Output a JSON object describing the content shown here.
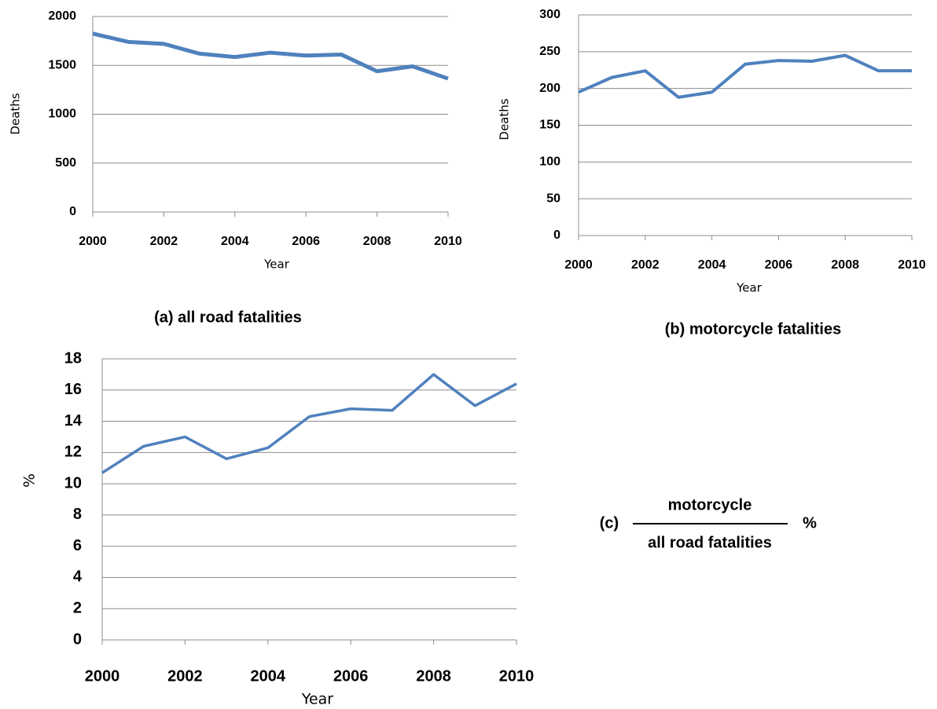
{
  "chart_data": [
    {
      "type": "line",
      "caption": "(a) all road fatalities",
      "x_label": "Year",
      "y_label": "Deaths",
      "x": [
        2000,
        2001,
        2002,
        2003,
        2004,
        2005,
        2006,
        2007,
        2008,
        2009,
        2010
      ],
      "values": [
        1825,
        1740,
        1720,
        1620,
        1585,
        1630,
        1600,
        1610,
        1440,
        1490,
        1365
      ],
      "color": "#4f81bd",
      "xlim": [
        2000,
        2010
      ],
      "xticks": [
        2000,
        2002,
        2004,
        2006,
        2008,
        2010
      ],
      "ylim": [
        0,
        2000
      ],
      "yticks": [
        0,
        500,
        1000,
        1500,
        2000
      ],
      "grid": true
    },
    {
      "type": "line",
      "caption": "(b) motorcycle fatalities",
      "x_label": "Year",
      "y_label": "Deaths",
      "x": [
        2000,
        2001,
        2002,
        2003,
        2004,
        2005,
        2006,
        2007,
        2008,
        2009,
        2010
      ],
      "values": [
        195,
        215,
        224,
        188,
        195,
        233,
        238,
        237,
        245,
        224,
        224
      ],
      "color": "#4f81bd",
      "xlim": [
        2000,
        2010
      ],
      "xticks": [
        2000,
        2002,
        2004,
        2006,
        2008,
        2010
      ],
      "ylim": [
        0,
        300
      ],
      "yticks": [
        0,
        50,
        100,
        150,
        200,
        250,
        300
      ],
      "grid": true
    },
    {
      "type": "line",
      "caption_prefix": "(c)",
      "caption_numerator": "motorcycle",
      "caption_denominator": "all road fatalities",
      "caption_suffix": "%",
      "x_label": "Year",
      "y_label": "%",
      "x": [
        2000,
        2001,
        2002,
        2003,
        2004,
        2005,
        2006,
        2007,
        2008,
        2009,
        2010
      ],
      "values": [
        10.7,
        12.4,
        13.0,
        11.6,
        12.3,
        14.3,
        14.8,
        14.7,
        17.0,
        15.0,
        16.4
      ],
      "color": "#4f81bd",
      "xlim": [
        2000,
        2010
      ],
      "xticks": [
        2000,
        2002,
        2004,
        2006,
        2008,
        2010
      ],
      "ylim": [
        0,
        18
      ],
      "yticks": [
        0,
        2,
        4,
        6,
        8,
        10,
        12,
        14,
        16,
        18
      ],
      "grid": true
    }
  ]
}
